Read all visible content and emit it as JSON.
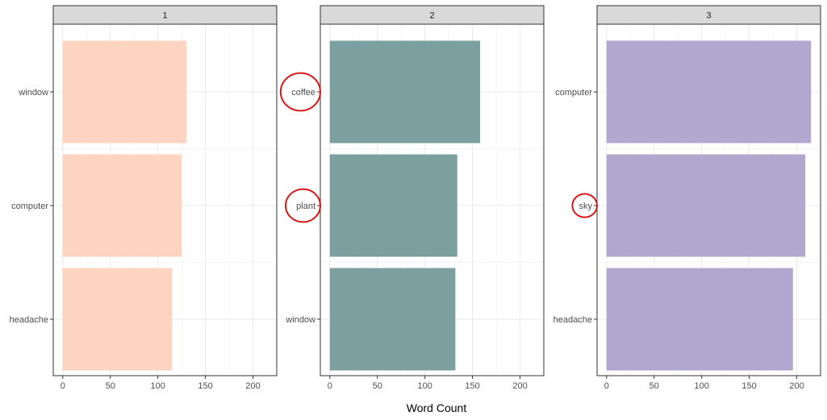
{
  "chart_data": {
    "type": "bar",
    "orientation": "horizontal",
    "xlabel": "Word Count",
    "ylabel": "",
    "xlim": [
      -10,
      225
    ],
    "x_ticks": [
      0,
      50,
      100,
      150,
      200
    ],
    "grid": true,
    "facets": [
      {
        "label": "1",
        "color": "#FDD3C2",
        "categories": [
          "window",
          "computer",
          "headache"
        ],
        "values": [
          130,
          125,
          115
        ],
        "highlighted": []
      },
      {
        "label": "2",
        "color": "#7BA09F",
        "categories": [
          "coffee",
          "plant",
          "window"
        ],
        "values": [
          158,
          134,
          132
        ],
        "highlighted": [
          "coffee",
          "plant"
        ]
      },
      {
        "label": "3",
        "color": "#B2A7CF",
        "categories": [
          "computer",
          "sky",
          "headache"
        ],
        "values": [
          215,
          209,
          196
        ],
        "highlighted": [
          "sky"
        ]
      }
    ],
    "highlight_color": "#D7191C"
  }
}
